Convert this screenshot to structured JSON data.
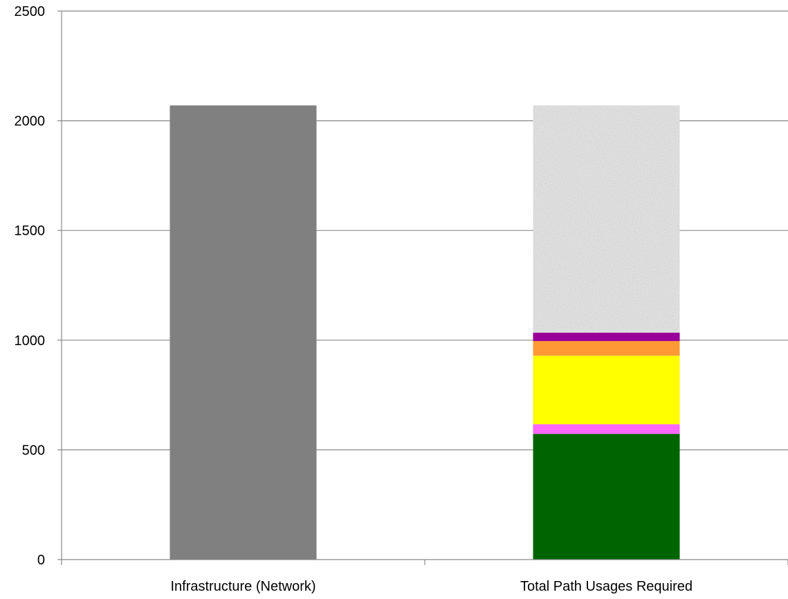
{
  "chart_data": {
    "type": "bar",
    "stacked": true,
    "title": "",
    "xlabel": "",
    "ylabel": "",
    "categories": [
      "Infrastructure (Network)",
      "Total Path Usages Required"
    ],
    "ylim": [
      0,
      2500
    ],
    "yticks": [
      0,
      500,
      1000,
      1500,
      2000,
      2500
    ],
    "grid": true,
    "legend": "none",
    "series": [
      {
        "values": [
          2070,
          0
        ],
        "color": "#808080",
        "fill": "solid"
      },
      {
        "values": [
          0,
          573
        ],
        "color": "#006400",
        "fill": "solid"
      },
      {
        "values": [
          0,
          44
        ],
        "color": "#FF66FF",
        "fill": "solid"
      },
      {
        "values": [
          0,
          312
        ],
        "color": "#FFFF00",
        "fill": "solid"
      },
      {
        "values": [
          0,
          67
        ],
        "color": "#FF9933",
        "fill": "solid"
      },
      {
        "values": [
          0,
          38
        ],
        "color": "#990099",
        "fill": "solid"
      },
      {
        "values": [
          0,
          1036
        ],
        "color": "#EBEBEB",
        "fill": "textured"
      }
    ]
  }
}
